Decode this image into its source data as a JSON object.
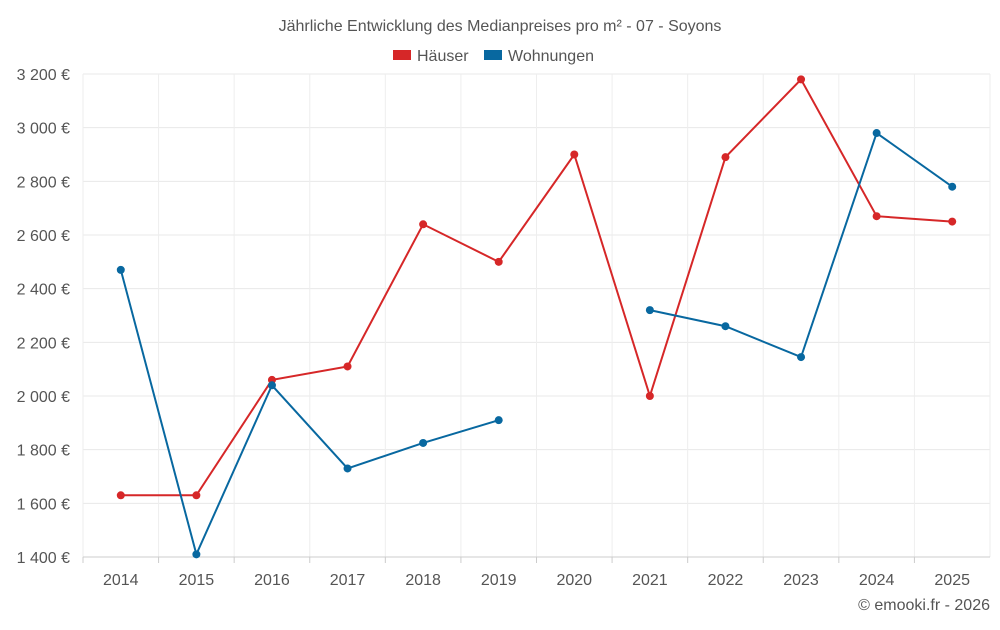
{
  "chart_data": {
    "type": "line",
    "title": "Jährliche Entwicklung des Medianpreises pro m² - 07 - Soyons",
    "xlabel": "",
    "ylabel": "",
    "categories": [
      "2014",
      "2015",
      "2016",
      "2017",
      "2018",
      "2019",
      "2020",
      "2021",
      "2022",
      "2023",
      "2024",
      "2025"
    ],
    "ylim": [
      1400,
      3200
    ],
    "yticks": [
      1400,
      1600,
      1800,
      2000,
      2200,
      2400,
      2600,
      2800,
      3000,
      3200
    ],
    "ytick_labels": [
      "1 400 €",
      "1 600 €",
      "1 800 €",
      "2 000 €",
      "2 200 €",
      "2 400 €",
      "2 600 €",
      "2 800 €",
      "3 000 €",
      "3 200 €"
    ],
    "grid": true,
    "legend_position": "top-center",
    "series": [
      {
        "name": "Häuser",
        "color": "#d62728",
        "values": [
          1630,
          1630,
          2060,
          2110,
          2640,
          2500,
          2900,
          2000,
          2890,
          3180,
          2670,
          2650
        ]
      },
      {
        "name": "Wohnungen",
        "color": "#0868a0",
        "values": [
          2470,
          1410,
          2040,
          1730,
          1825,
          1910,
          null,
          2320,
          2260,
          2145,
          2980,
          2780
        ]
      }
    ]
  },
  "footer": {
    "credit": "© emooki.fr - 2026"
  }
}
